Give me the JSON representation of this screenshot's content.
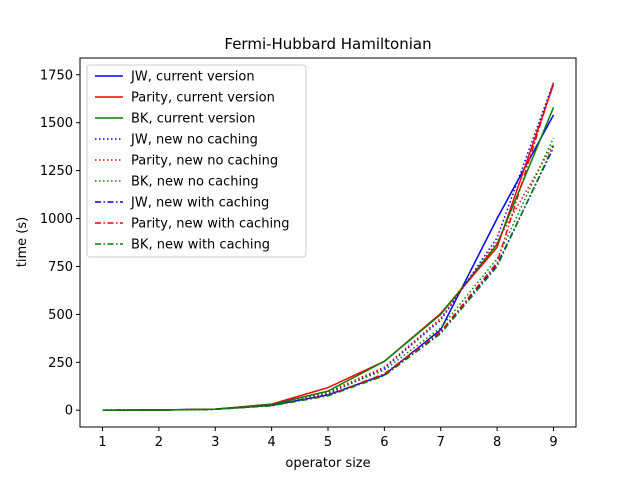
{
  "chart_data": {
    "type": "line",
    "title": "Fermi-Hubbard Hamiltonian",
    "xlabel": "operator size",
    "ylabel": "time (s)",
    "xlim": [
      0.6,
      9.4
    ],
    "ylim": [
      -87.5,
      1837.5
    ],
    "xticks": [
      1,
      2,
      3,
      4,
      5,
      6,
      7,
      8,
      9
    ],
    "yticks": [
      0,
      250,
      500,
      750,
      1000,
      1250,
      1500,
      1750
    ],
    "grid": false,
    "legend_position": "top-left",
    "x": [
      1,
      2,
      3,
      4,
      5,
      6,
      7,
      8,
      9
    ],
    "series": [
      {
        "name": "JW, current version",
        "color": "#0000ff",
        "style": "solid",
        "values": [
          0,
          1,
          5,
          25,
          80,
          185,
          420,
          1000,
          1540
        ]
      },
      {
        "name": "Parity, current version",
        "color": "#ff0000",
        "style": "solid",
        "values": [
          0,
          1,
          6,
          32,
          118,
          255,
          505,
          850,
          1700
        ]
      },
      {
        "name": "BK, current version",
        "color": "#008000",
        "style": "solid",
        "values": [
          0,
          1,
          6,
          30,
          100,
          255,
          500,
          865,
          1580
        ]
      },
      {
        "name": "JW, new no caching",
        "color": "#0000ff",
        "style": "dotted",
        "values": [
          0,
          1,
          5,
          26,
          85,
          220,
          470,
          900,
          1710
        ]
      },
      {
        "name": "Parity, new no caching",
        "color": "#ff0000",
        "style": "dotted",
        "values": [
          0,
          1,
          5,
          28,
          95,
          225,
          480,
          880,
          1390
        ]
      },
      {
        "name": "BK, new no caching",
        "color": "#008000",
        "style": "dotted",
        "values": [
          0,
          1,
          5,
          27,
          92,
          210,
          430,
          790,
          1420
        ]
      },
      {
        "name": "JW, new with caching",
        "color": "#0000ff",
        "style": "dashdot",
        "values": [
          0,
          1,
          5,
          24,
          78,
          185,
          405,
          760,
          1370
        ]
      },
      {
        "name": "Parity, new with caching",
        "color": "#ff0000",
        "style": "dashdot",
        "values": [
          0,
          1,
          5,
          24,
          78,
          190,
          410,
          770,
          1710
        ]
      },
      {
        "name": "BK, new with caching",
        "color": "#008000",
        "style": "dashdot",
        "values": [
          0,
          1,
          5,
          23,
          75,
          180,
          400,
          750,
          1380
        ]
      }
    ]
  }
}
